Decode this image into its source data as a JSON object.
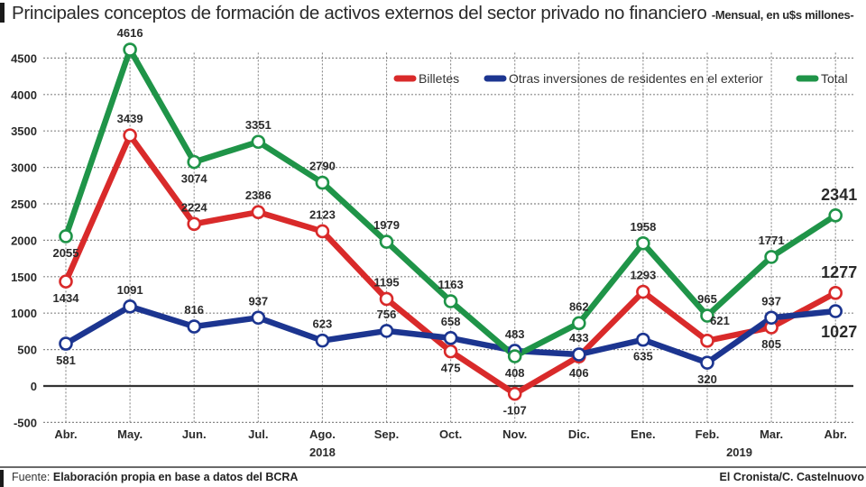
{
  "header": {
    "title": "Principales conceptos de formación de activos externos del sector privado no financiero",
    "subtitle": "-Mensual, en u$s millones-"
  },
  "footer": {
    "source_label": "Fuente:",
    "source_text": "Elaboración propia en base a datos del BCRA",
    "credit": "El Cronista/C. Castelnuovo"
  },
  "colors": {
    "billetes": "#d92a2a",
    "otras": "#1c3590",
    "total": "#1f9448",
    "grid": "#888888",
    "zero_line": "#333333"
  },
  "chart_data": {
    "type": "line",
    "title": "Principales conceptos de formación de activos externos del sector privado no financiero",
    "subtitle": "-Mensual, en u$s millones-",
    "xlabel": "",
    "ylabel": "",
    "categories": [
      "Abr.",
      "May.",
      "Jun.",
      "Jul.",
      "Ago.",
      "Sep.",
      "Oct.",
      "Nov.",
      "Dic.",
      "Ene.",
      "Feb.",
      "Mar.",
      "Abr."
    ],
    "year_labels": [
      {
        "label": "2018",
        "under_category_index": 4
      },
      {
        "label": "2019",
        "under_category_index": 10.5
      }
    ],
    "ylim": [
      -500,
      4500
    ],
    "yticks": [
      -500,
      0,
      500,
      1000,
      1500,
      2000,
      2500,
      3000,
      3500,
      4000,
      4500
    ],
    "grid": true,
    "legend_position": "top-right",
    "series": [
      {
        "name": "Billetes",
        "key": "billetes",
        "values": [
          1434,
          3439,
          2224,
          2386,
          2123,
          1195,
          475,
          -107,
          406,
          1293,
          621,
          805,
          1277
        ]
      },
      {
        "name": "Otras inversiones de residentes en el exterior",
        "key": "otras",
        "values": [
          581,
          1091,
          816,
          937,
          623,
          756,
          658,
          483,
          433,
          635,
          320,
          937,
          1027
        ]
      },
      {
        "name": "Total",
        "key": "total",
        "values": [
          2055,
          4616,
          3074,
          3351,
          2790,
          1979,
          1163,
          408,
          862,
          1958,
          965,
          1771,
          2341
        ]
      }
    ]
  }
}
